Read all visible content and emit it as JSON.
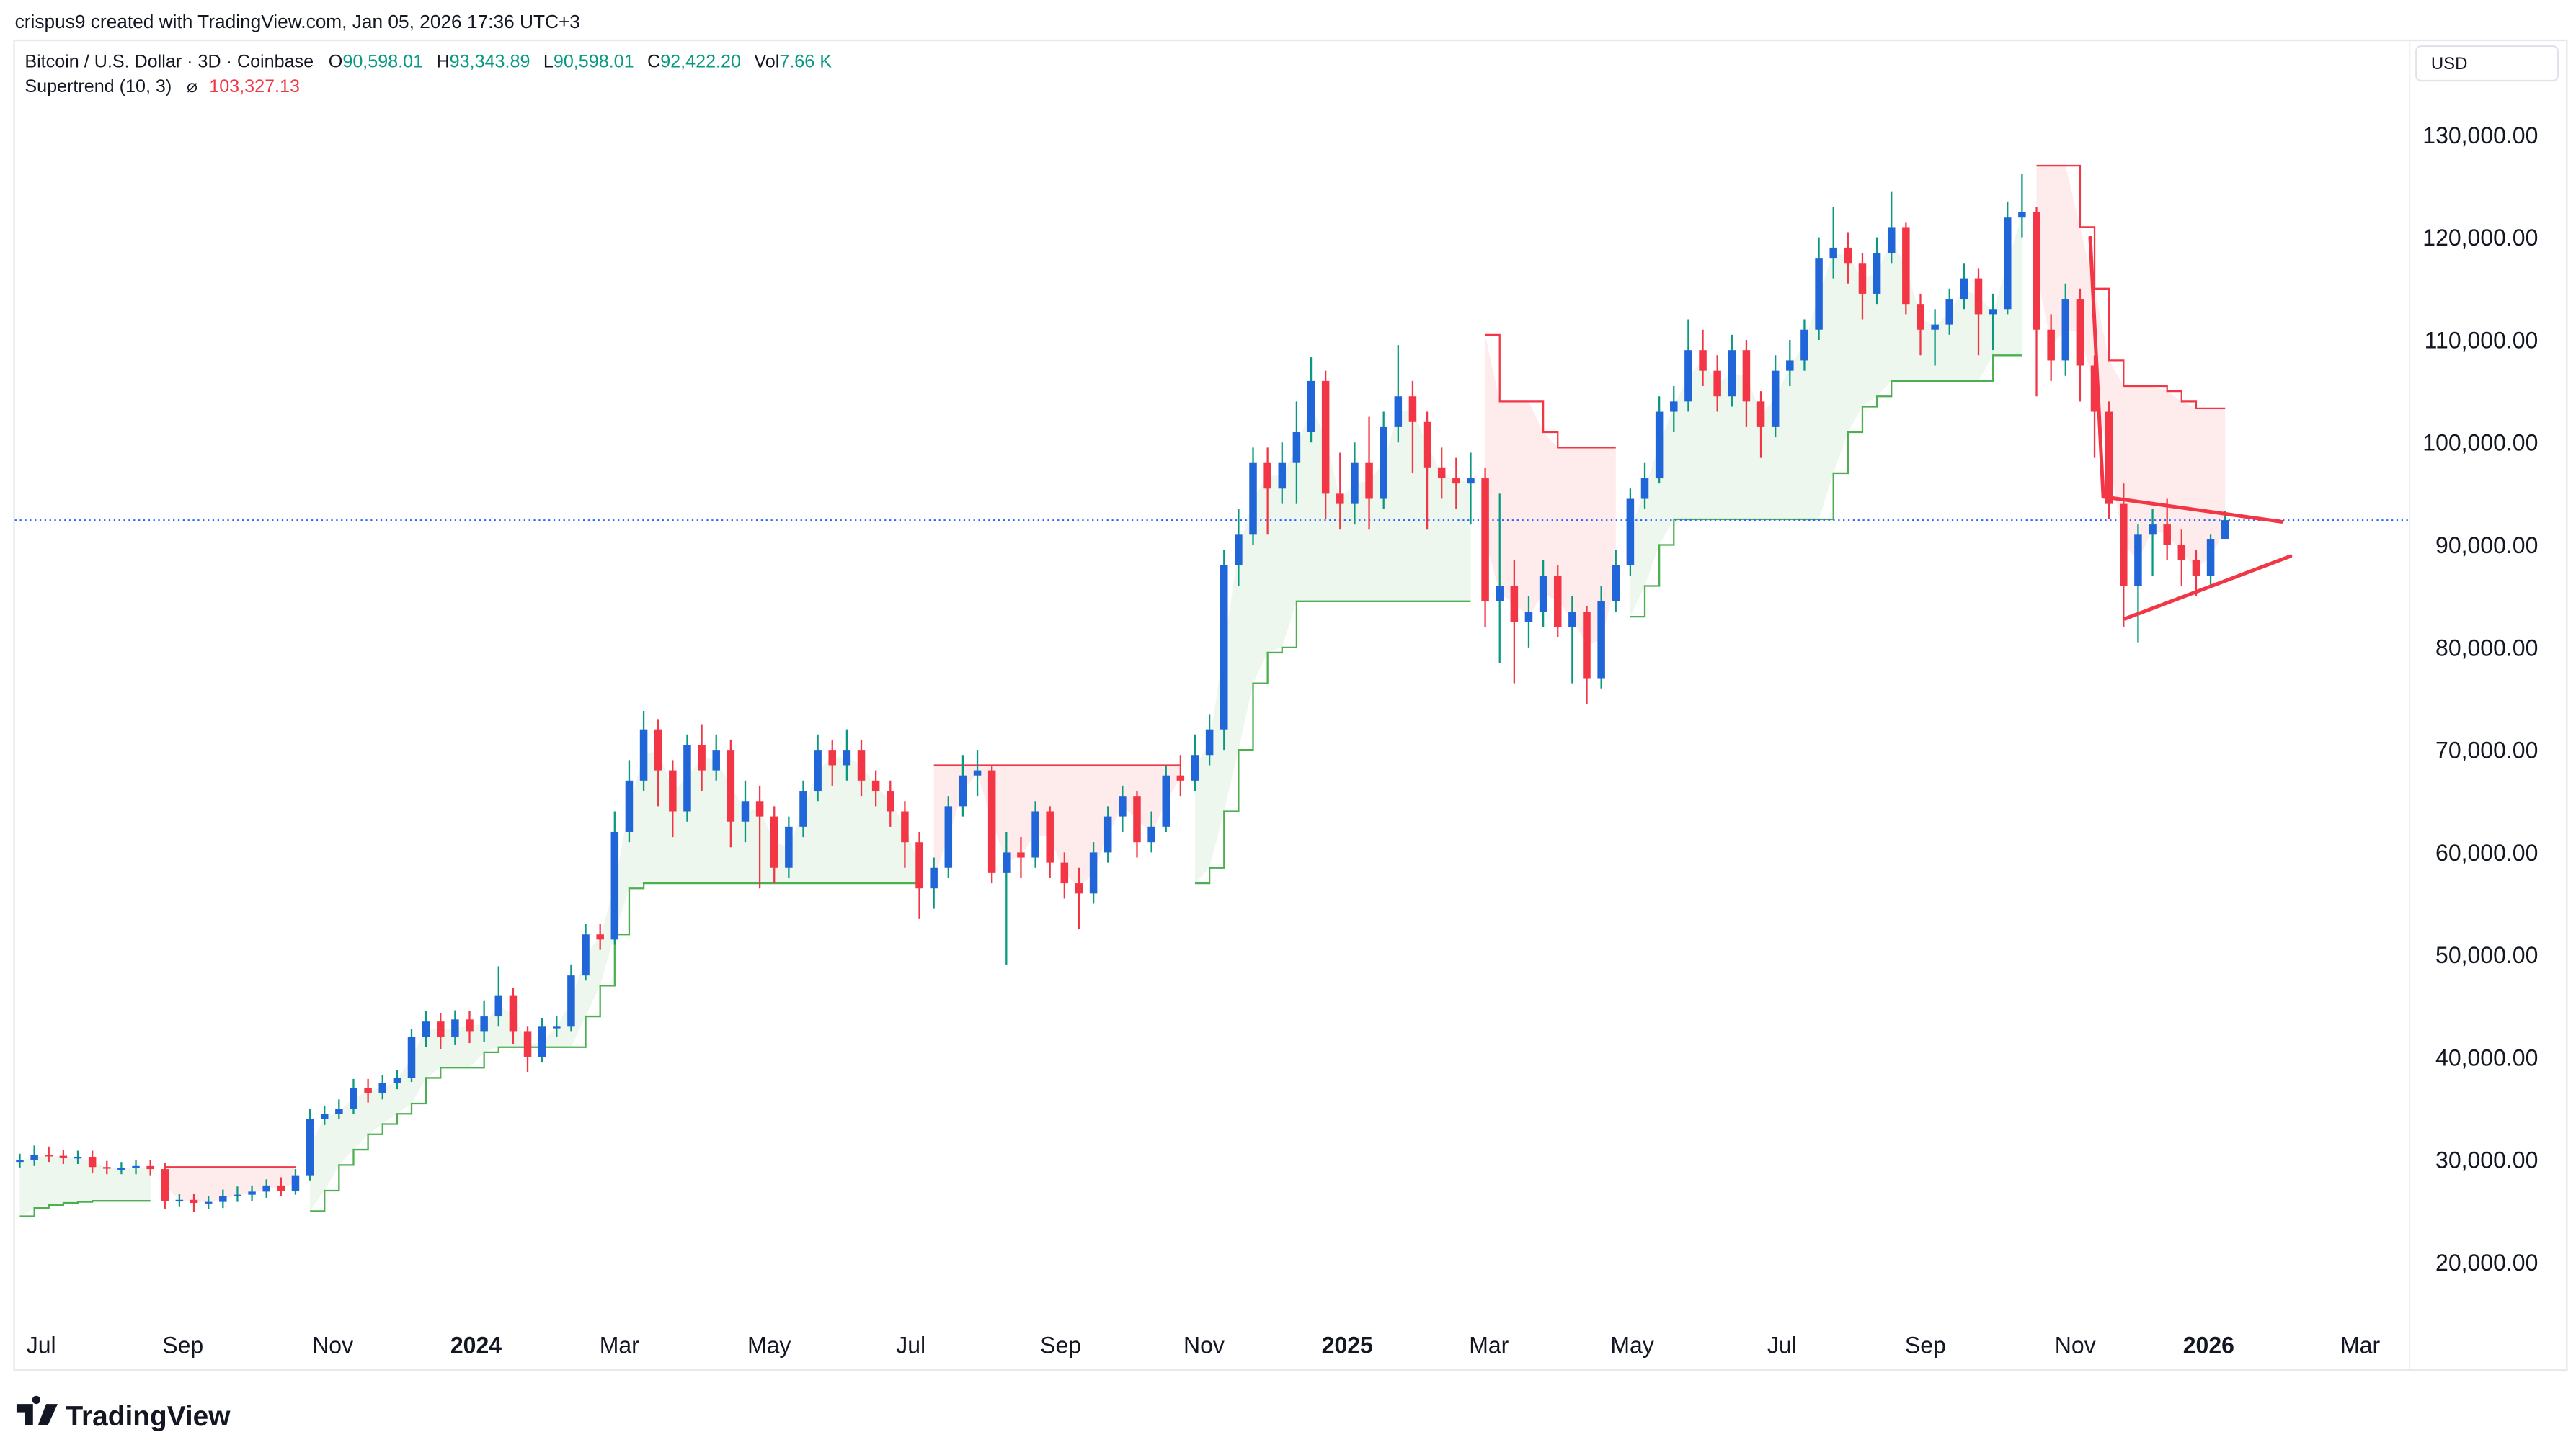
{
  "attribution": "crispus9 created with TradingView.com, Jan 05, 2026 17:36 UTC+3",
  "legend": {
    "symbol": "Bitcoin / U.S. Dollar · 3D · Coinbase",
    "o_label": "O",
    "o_value": "90,598.01",
    "h_label": "H",
    "h_value": "93,343.89",
    "l_label": "L",
    "l_value": "90,598.01",
    "c_label": "C",
    "c_value": "92,422.20",
    "vol_label": "Vol",
    "vol_value": "7.66 K",
    "indicator": "Supertrend (10, 3)",
    "indicator_icon": "hidden-eye-slash-icon",
    "indicator_value": "103,327.13"
  },
  "currency": "USD",
  "logo_text": "TradingView",
  "colors": {
    "up_body": "#2166d9",
    "up_wick": "#089981",
    "down": "#f23645",
    "st_up": "#4caf50",
    "st_down": "#f23645",
    "last_price_line": "#2962ff",
    "legend_value": "#089981",
    "indicator_value": "#f23645"
  },
  "chart_data": {
    "type": "candlestick",
    "title": "",
    "ylim": [
      15000,
      135000
    ],
    "y_ticks": [
      "130,000.00",
      "120,000.00",
      "110,000.00",
      "100,000.00",
      "90,000.00",
      "80,000.00",
      "70,000.00",
      "60,000.00",
      "50,000.00",
      "40,000.00",
      "30,000.00",
      "20,000.00"
    ],
    "y_tick_values": [
      130000,
      120000,
      110000,
      100000,
      90000,
      80000,
      70000,
      60000,
      50000,
      40000,
      30000,
      20000
    ],
    "x_ticks": [
      {
        "label": "Jul",
        "bold": false
      },
      {
        "label": "Sep",
        "bold": false
      },
      {
        "label": "Nov",
        "bold": false
      },
      {
        "label": "2024",
        "bold": true
      },
      {
        "label": "Mar",
        "bold": false
      },
      {
        "label": "May",
        "bold": false
      },
      {
        "label": "Jul",
        "bold": false
      },
      {
        "label": "Sep",
        "bold": false
      },
      {
        "label": "Nov",
        "bold": false
      },
      {
        "label": "2025",
        "bold": true
      },
      {
        "label": "Mar",
        "bold": false
      },
      {
        "label": "May",
        "bold": false
      },
      {
        "label": "Jul",
        "bold": false
      },
      {
        "label": "Sep",
        "bold": false
      },
      {
        "label": "Nov",
        "bold": false
      },
      {
        "label": "2026",
        "bold": true
      },
      {
        "label": "Mar",
        "bold": false
      }
    ],
    "grid": false,
    "last_price": 92422.2,
    "candles_ohlc": [
      [
        29800,
        30600,
        29200,
        30000
      ],
      [
        30000,
        31400,
        29400,
        30500
      ],
      [
        30500,
        31300,
        29800,
        30400
      ],
      [
        30400,
        31000,
        29600,
        30200
      ],
      [
        30200,
        30900,
        29600,
        30300
      ],
      [
        30300,
        30900,
        28700,
        29300
      ],
      [
        29300,
        29900,
        28600,
        29200
      ],
      [
        29200,
        29800,
        28600,
        29200
      ],
      [
        29200,
        30000,
        28600,
        29400
      ],
      [
        29400,
        30000,
        28500,
        29100
      ],
      [
        29100,
        29700,
        25200,
        26000
      ],
      [
        26000,
        26700,
        25400,
        26100
      ],
      [
        26100,
        26700,
        24900,
        25800
      ],
      [
        25800,
        26500,
        25200,
        25900
      ],
      [
        25900,
        27100,
        25300,
        26500
      ],
      [
        26500,
        27400,
        25900,
        26600
      ],
      [
        26600,
        27500,
        26000,
        26900
      ],
      [
        26900,
        28100,
        26300,
        27500
      ],
      [
        27500,
        28300,
        26500,
        27000
      ],
      [
        27000,
        29100,
        26600,
        28500
      ],
      [
        28500,
        35000,
        28000,
        34000
      ],
      [
        34000,
        35300,
        33400,
        34500
      ],
      [
        34500,
        35900,
        34000,
        35000
      ],
      [
        35000,
        37900,
        34500,
        37000
      ],
      [
        37000,
        37900,
        35600,
        36500
      ],
      [
        36500,
        38300,
        35900,
        37500
      ],
      [
        37500,
        38800,
        36900,
        38000
      ],
      [
        38000,
        42800,
        37600,
        42000
      ],
      [
        42000,
        44500,
        41000,
        43500
      ],
      [
        43500,
        44300,
        40800,
        42000
      ],
      [
        42000,
        44600,
        41200,
        43700
      ],
      [
        43700,
        44500,
        41400,
        42500
      ],
      [
        42500,
        45500,
        41500,
        44000
      ],
      [
        44000,
        48900,
        43000,
        46000
      ],
      [
        46000,
        46800,
        41300,
        42500
      ],
      [
        42500,
        43000,
        38600,
        40000
      ],
      [
        40000,
        43800,
        39500,
        43000
      ],
      [
        43000,
        44000,
        42000,
        43000
      ],
      [
        43000,
        49000,
        42500,
        48000
      ],
      [
        48000,
        53000,
        47500,
        52000
      ],
      [
        52000,
        53000,
        50500,
        51500
      ],
      [
        51500,
        64000,
        51000,
        62000
      ],
      [
        62000,
        69000,
        61000,
        67000
      ],
      [
        67000,
        73800,
        66000,
        72000
      ],
      [
        72000,
        73000,
        64500,
        68000
      ],
      [
        68000,
        69000,
        61500,
        64000
      ],
      [
        64000,
        71500,
        63000,
        70500
      ],
      [
        70500,
        72500,
        66000,
        68000
      ],
      [
        68000,
        71500,
        67000,
        70000
      ],
      [
        70000,
        71000,
        60500,
        63000
      ],
      [
        63000,
        67000,
        61000,
        65000
      ],
      [
        65000,
        66500,
        56500,
        63500
      ],
      [
        63500,
        64500,
        57000,
        58500
      ],
      [
        58500,
        63500,
        57500,
        62500
      ],
      [
        62500,
        67000,
        61500,
        66000
      ],
      [
        66000,
        71500,
        65000,
        70000
      ],
      [
        70000,
        71000,
        66500,
        68500
      ],
      [
        68500,
        72000,
        67000,
        70000
      ],
      [
        70000,
        71000,
        65500,
        67000
      ],
      [
        67000,
        68000,
        64500,
        66000
      ],
      [
        66000,
        67000,
        62500,
        64000
      ],
      [
        64000,
        65000,
        58500,
        61000
      ],
      [
        61000,
        62000,
        53500,
        56500
      ],
      [
        56500,
        59500,
        54500,
        58500
      ],
      [
        58500,
        65500,
        57500,
        64500
      ],
      [
        64500,
        69500,
        63500,
        67500
      ],
      [
        67500,
        70000,
        65500,
        68000
      ],
      [
        68000,
        68500,
        57000,
        58000
      ],
      [
        58000,
        62000,
        49000,
        60000
      ],
      [
        60000,
        61500,
        57500,
        59500
      ],
      [
        59500,
        65000,
        58500,
        64000
      ],
      [
        64000,
        64500,
        57500,
        59000
      ],
      [
        59000,
        60000,
        55500,
        57000
      ],
      [
        57000,
        58500,
        52500,
        56000
      ],
      [
        56000,
        61000,
        55000,
        60000
      ],
      [
        60000,
        64500,
        59000,
        63500
      ],
      [
        63500,
        66500,
        62000,
        65500
      ],
      [
        65500,
        66000,
        59500,
        61000
      ],
      [
        61000,
        64000,
        60000,
        62500
      ],
      [
        62500,
        68500,
        62000,
        67500
      ],
      [
        67500,
        69500,
        65500,
        67000
      ],
      [
        67000,
        71500,
        66000,
        69500
      ],
      [
        69500,
        73500,
        68500,
        72000
      ],
      [
        72000,
        89500,
        70000,
        88000
      ],
      [
        88000,
        93500,
        86000,
        91000
      ],
      [
        91000,
        99500,
        90000,
        98000
      ],
      [
        98000,
        99500,
        91000,
        95500
      ],
      [
        95500,
        100000,
        94000,
        98000
      ],
      [
        98000,
        104000,
        94000,
        101000
      ],
      [
        101000,
        108300,
        100000,
        106000
      ],
      [
        106000,
        107000,
        92500,
        95000
      ],
      [
        95000,
        99000,
        91500,
        94000
      ],
      [
        94000,
        100000,
        92000,
        98000
      ],
      [
        98000,
        102500,
        91500,
        94500
      ],
      [
        94500,
        103000,
        93500,
        101500
      ],
      [
        101500,
        109500,
        100000,
        104500
      ],
      [
        104500,
        106000,
        97000,
        102000
      ],
      [
        102000,
        103000,
        91500,
        97500
      ],
      [
        97500,
        99500,
        94500,
        96500
      ],
      [
        96500,
        98500,
        93500,
        96000
      ],
      [
        96000,
        99000,
        92000,
        96500
      ],
      [
        96500,
        97500,
        82000,
        84500
      ],
      [
        84500,
        95000,
        78500,
        86000
      ],
      [
        86000,
        88500,
        76500,
        82500
      ],
      [
        82500,
        85000,
        80000,
        83500
      ],
      [
        83500,
        88500,
        82000,
        87000
      ],
      [
        87000,
        88000,
        81000,
        82000
      ],
      [
        82000,
        85000,
        76500,
        83500
      ],
      [
        83500,
        84000,
        74500,
        77000
      ],
      [
        77000,
        86000,
        76000,
        84500
      ],
      [
        84500,
        89500,
        83500,
        88000
      ],
      [
        88000,
        95500,
        87000,
        94500
      ],
      [
        94500,
        98000,
        93500,
        96500
      ],
      [
        96500,
        104500,
        96000,
        103000
      ],
      [
        103000,
        105500,
        101000,
        104000
      ],
      [
        104000,
        112000,
        103000,
        109000
      ],
      [
        109000,
        111000,
        105500,
        107000
      ],
      [
        107000,
        108500,
        103000,
        104500
      ],
      [
        104500,
        110500,
        103500,
        109000
      ],
      [
        109000,
        110000,
        101500,
        104000
      ],
      [
        104000,
        105000,
        98500,
        101500
      ],
      [
        101500,
        108500,
        100500,
        107000
      ],
      [
        107000,
        110000,
        105500,
        108000
      ],
      [
        108000,
        112000,
        107000,
        111000
      ],
      [
        111000,
        120000,
        110000,
        118000
      ],
      [
        118000,
        123000,
        116000,
        119000
      ],
      [
        119000,
        120500,
        115500,
        117500
      ],
      [
        117500,
        118500,
        112000,
        114500
      ],
      [
        114500,
        120000,
        113500,
        118500
      ],
      [
        118500,
        124500,
        117500,
        121000
      ],
      [
        121000,
        121500,
        112500,
        113500
      ],
      [
        113500,
        114500,
        108500,
        111000
      ],
      [
        111000,
        113000,
        107500,
        111500
      ],
      [
        111500,
        115000,
        110500,
        114000
      ],
      [
        114000,
        117500,
        113000,
        116000
      ],
      [
        116000,
        117000,
        108500,
        112500
      ],
      [
        112500,
        114500,
        109000,
        113000
      ],
      [
        113000,
        123500,
        112500,
        122000
      ],
      [
        122000,
        126200,
        120000,
        122500
      ],
      [
        122500,
        123000,
        104500,
        111000
      ],
      [
        111000,
        112500,
        106000,
        108000
      ],
      [
        108000,
        115500,
        106500,
        114000
      ],
      [
        114000,
        115000,
        104000,
        107500
      ],
      [
        107500,
        108500,
        98500,
        103000
      ],
      [
        103000,
        104000,
        92500,
        94000
      ],
      [
        94000,
        96000,
        82000,
        86000
      ],
      [
        86000,
        92000,
        80500,
        91000
      ],
      [
        91000,
        93500,
        87000,
        92000
      ],
      [
        92000,
        94500,
        88500,
        90000
      ],
      [
        90000,
        91500,
        86000,
        88500
      ],
      [
        88500,
        89500,
        85000,
        87000
      ],
      [
        87000,
        91000,
        86000,
        90598.01
      ],
      [
        90598.01,
        93343.89,
        90598.01,
        92422.2
      ]
    ],
    "supertrend": [
      24500,
      25300,
      25600,
      25800,
      25900,
      26000,
      26000,
      26000,
      26000,
      26000,
      29300,
      29300,
      29300,
      29300,
      29300,
      29300,
      29300,
      29300,
      29300,
      29300,
      25000,
      27000,
      29500,
      31000,
      32500,
      33500,
      34500,
      35500,
      38000,
      39000,
      39000,
      39000,
      40500,
      41000,
      41000,
      41000,
      41000,
      41000,
      41000,
      44000,
      47000,
      52000,
      56500,
      57000,
      57000,
      57000,
      57000,
      57000,
      57000,
      57000,
      57000,
      57000,
      57000,
      57000,
      57000,
      57000,
      57000,
      57000,
      57000,
      57000,
      57000,
      57000,
      57000,
      68500,
      68500,
      68500,
      68500,
      68500,
      68500,
      68500,
      68500,
      68500,
      68500,
      68500,
      68500,
      68500,
      68500,
      68500,
      68500,
      68500,
      68500,
      57000,
      58500,
      64000,
      70000,
      76500,
      79500,
      80000,
      84500,
      84500,
      84500,
      84500,
      84500,
      84500,
      84500,
      84500,
      84500,
      84500,
      84500,
      84500,
      84500,
      110500,
      104000,
      104000,
      104000,
      101000,
      99500,
      99500,
      99500,
      99500,
      99500,
      83000,
      86000,
      90000,
      92500,
      92500,
      92500,
      92500,
      92500,
      92500,
      92500,
      92500,
      92500,
      92500,
      92500,
      97000,
      101000,
      103500,
      104500,
      106000,
      106000,
      106000,
      106000,
      106000,
      106000,
      106000,
      108500,
      108500,
      108500,
      127000,
      127000,
      127000,
      121000,
      115000,
      108000,
      105500,
      105500,
      105500,
      105000,
      104000,
      103327.13,
      103327.13,
      103327.13
    ],
    "supertrend_down_ranges": [
      [
        10,
        19
      ],
      [
        63,
        80
      ],
      [
        101,
        110
      ],
      [
        139,
        152
      ]
    ],
    "drawings": [
      {
        "type": "trend_line",
        "points": [
          [
            142.7,
            120000
          ],
          [
            143.6,
            94700
          ]
        ]
      },
      {
        "type": "trend_line",
        "points": [
          [
            143.6,
            94700
          ],
          [
            155.9,
            92260
          ]
        ]
      },
      {
        "type": "trend_line",
        "points": [
          [
            145.1,
            82800
          ],
          [
            156.5,
            88900
          ]
        ]
      }
    ]
  }
}
